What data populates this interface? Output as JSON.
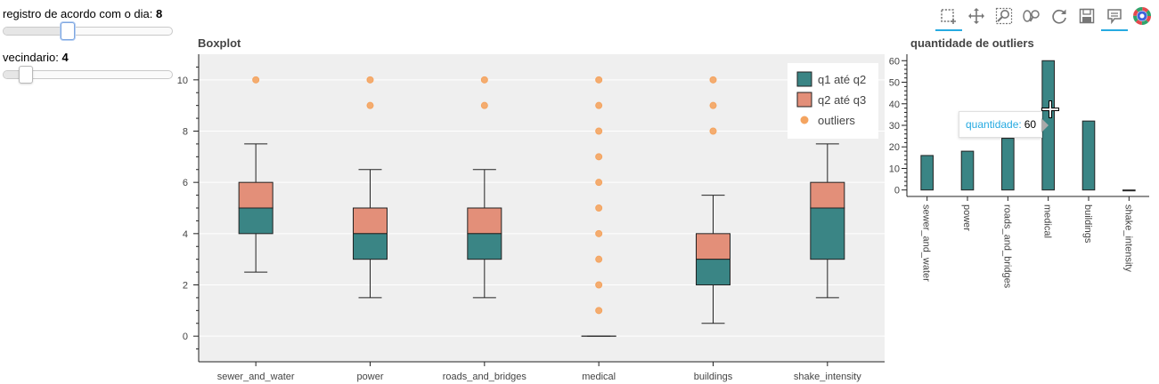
{
  "slider_day": {
    "label": "registro de acordo com o dia:",
    "value": "8",
    "fraction": 0.38
  },
  "slider_neighbor": {
    "label": "vecindario:",
    "value": "4",
    "fraction": 0.13
  },
  "toolbar": {
    "tools": [
      {
        "name": "box-select-icon",
        "active": true
      },
      {
        "name": "pan-icon",
        "active": false
      },
      {
        "name": "box-zoom-icon",
        "active": false
      },
      {
        "name": "wheel-zoom-icon",
        "active": false
      },
      {
        "name": "reset-icon",
        "active": false
      },
      {
        "name": "save-icon",
        "active": false
      },
      {
        "name": "hover-icon",
        "active": true
      },
      {
        "name": "bokeh-logo-icon",
        "active": false
      }
    ]
  },
  "boxplot": {
    "title": "Boxplot",
    "colors": {
      "q1_q2": "#3a8585",
      "q2_q3": "#e38f79",
      "outliers": "#f4a460",
      "whisker": "#222222",
      "background": "#efefef"
    },
    "legend": {
      "q1_q2": "q1 até q2",
      "q2_q3": "q2 até q3",
      "outliers": "outliers"
    }
  },
  "outliers_chart": {
    "title": "quantidade de outliers",
    "color": "#3a8585",
    "tooltip": {
      "label": "quantidade:",
      "value": "60"
    }
  },
  "chart_data": [
    {
      "type": "box",
      "title": "Boxplot",
      "categories": [
        "sewer_and_water",
        "power",
        "roads_and_bridges",
        "medical",
        "buildings",
        "shake_intensity"
      ],
      "ylim": [
        -1,
        11
      ],
      "yticks": [
        0,
        2,
        4,
        6,
        8,
        10
      ],
      "boxes": [
        {
          "q1": 4,
          "q2": 5,
          "q3": 6,
          "lower": 2.5,
          "upper": 7.5,
          "outliers": [
            10
          ]
        },
        {
          "q1": 3,
          "q2": 4,
          "q3": 5,
          "lower": 1.5,
          "upper": 6.5,
          "outliers": [
            9,
            10
          ]
        },
        {
          "q1": 3,
          "q2": 4,
          "q3": 5,
          "lower": 1.5,
          "upper": 6.5,
          "outliers": [
            9,
            10
          ]
        },
        {
          "q1": 0,
          "q2": 0,
          "q3": 0,
          "lower": 0,
          "upper": 0,
          "outliers": [
            1,
            2,
            3,
            4,
            5,
            6,
            7,
            8,
            9,
            10
          ]
        },
        {
          "q1": 2,
          "q2": 3,
          "q3": 4,
          "lower": 0.5,
          "upper": 5.5,
          "outliers": [
            8,
            9,
            10
          ]
        },
        {
          "q1": 3,
          "q2": 5,
          "q3": 6,
          "lower": 1.5,
          "upper": 7.5,
          "outliers": []
        }
      ],
      "legend_position": "top-right",
      "grid": true
    },
    {
      "type": "bar",
      "title": "quantidade de outliers",
      "categories": [
        "sewer_and_water",
        "power",
        "roads_and_bridges",
        "medical",
        "buildings",
        "shake_intensity"
      ],
      "values": [
        16,
        18,
        24,
        60,
        32,
        0
      ],
      "ylim": [
        -3,
        63
      ],
      "yticks": [
        0,
        10,
        20,
        30,
        40,
        50,
        60
      ],
      "grid": false
    }
  ]
}
